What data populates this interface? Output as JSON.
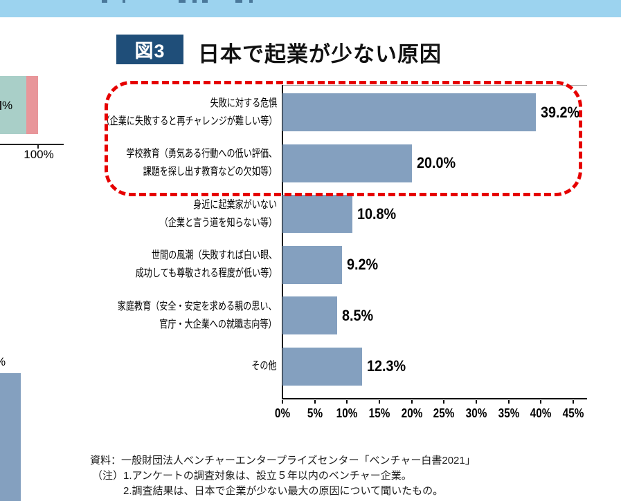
{
  "figure": {
    "badge_label": "図3",
    "title": "日本で起業が少ない原因",
    "badge_bg": "#1f4e79"
  },
  "chart_data": {
    "type": "bar",
    "orientation": "horizontal",
    "title": "日本で起業が少ない原因",
    "categories": [
      [
        "失敗に対する危惧",
        "（企業に失敗すると再チャレンジが難しい等）"
      ],
      [
        "学校教育（勇気ある行動への低い評価、",
        "課題を探し出す教育などの欠如等）"
      ],
      [
        "身近に起業家がいない",
        "（企業と言う道を知らない等）"
      ],
      [
        "世間の風潮（失敗すれば白い眼、",
        "成功しても尊敬される程度が低い等）"
      ],
      [
        "家庭教育（安全・安定を求める親の思い、",
        "官庁・大企業への就職志向等）"
      ],
      [
        "その他"
      ]
    ],
    "values": [
      39.2,
      20.0,
      10.8,
      9.2,
      8.5,
      12.3
    ],
    "value_labels": [
      "39.2%",
      "20.0%",
      "10.8%",
      "9.2%",
      "8.5%",
      "12.3%"
    ],
    "x_ticks": [
      "0%",
      "5%",
      "10%",
      "15%",
      "20%",
      "25%",
      "30%",
      "35%",
      "40%",
      "45%"
    ],
    "xlim": [
      0,
      45
    ],
    "grid": false,
    "bar_color": "#84a0bf",
    "highlight_box_color": "#e60000",
    "highlighted_rows": [
      0,
      1
    ]
  },
  "left_fragment_top": {
    "partial_percent_label": "%",
    "axis_tick_label": "100%",
    "teal_color": "#a9cfc8",
    "pink_color": "#e8969a"
  },
  "left_fragment_bottom": {
    "partial_percent_label": "%",
    "bar_color": "#84a0bf"
  },
  "notes": {
    "source": "資料：一般財団法人ベンチャーエンタープライズセンター「ベンチャー白書2021」",
    "note1": "（注）1.アンケートの調査対象は、設立５年以内のベンチャー企業。",
    "note2": "2.調査結果は、日本で企業が少ない最大の原因について聞いたもの。"
  }
}
